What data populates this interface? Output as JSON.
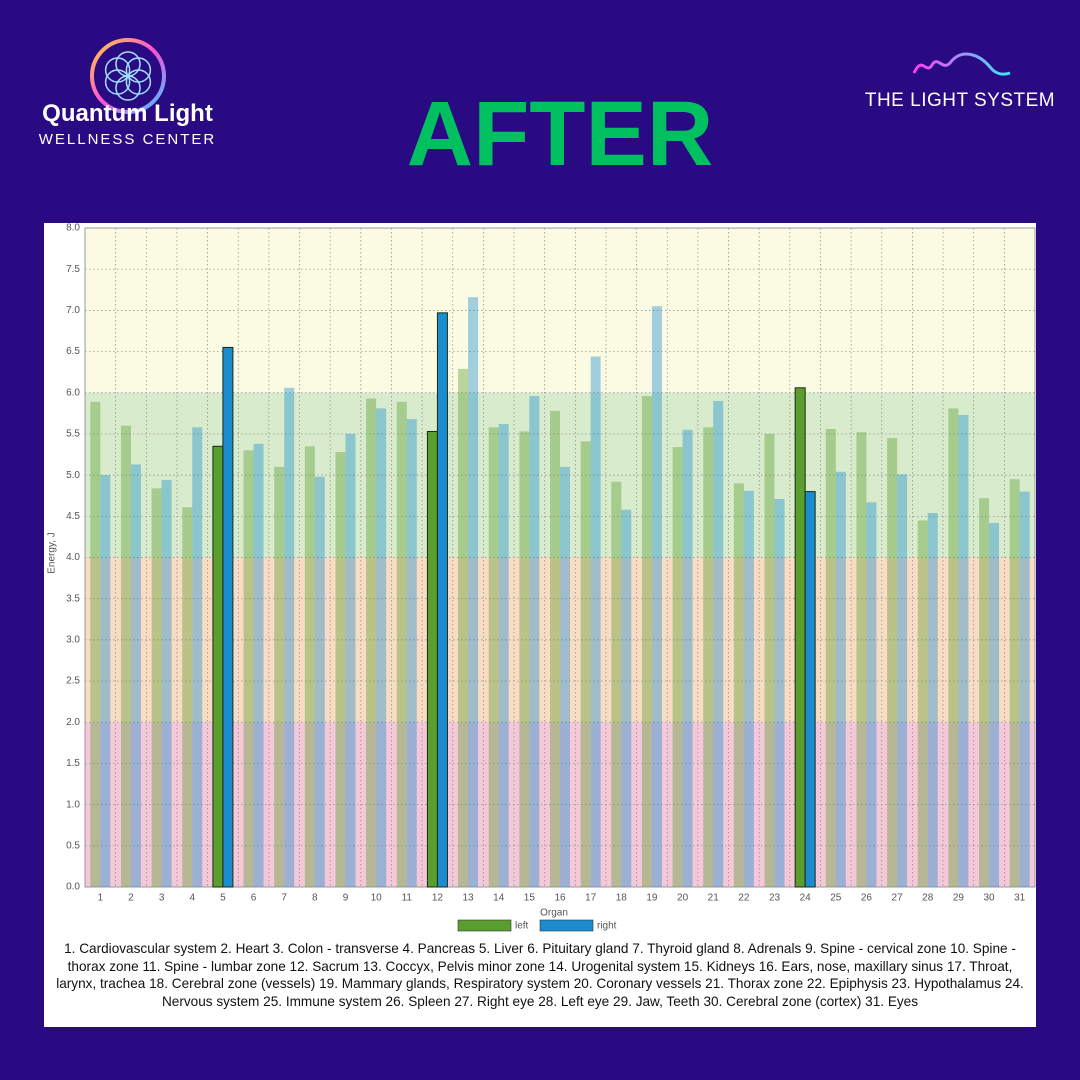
{
  "header": {
    "brand_name": "Quantum Light",
    "brand_sub": "WELLNESS CENTER",
    "title": "AFTER",
    "partner": "THE LIGHT SYSTEM"
  },
  "chart_data": {
    "type": "bar",
    "x_label": "Organ",
    "y_label": "Energy, J",
    "categories": [
      "1",
      "2",
      "3",
      "4",
      "5",
      "6",
      "7",
      "8",
      "9",
      "10",
      "11",
      "12",
      "13",
      "14",
      "15",
      "16",
      "17",
      "18",
      "19",
      "20",
      "21",
      "22",
      "23",
      "24",
      "25",
      "26",
      "27",
      "28",
      "29",
      "30",
      "31"
    ],
    "series": [
      {
        "name": "left",
        "color": "#5a9e2f",
        "values": [
          5.89,
          5.6,
          4.84,
          4.61,
          5.35,
          5.3,
          5.1,
          5.35,
          5.28,
          5.93,
          5.89,
          5.53,
          6.29,
          5.58,
          5.53,
          5.78,
          5.41,
          4.92,
          5.96,
          5.34,
          5.58,
          4.9,
          5.5,
          6.06,
          5.56,
          5.52,
          5.45,
          4.45,
          5.81,
          4.72,
          4.95
        ]
      },
      {
        "name": "right",
        "color": "#1a8ccf",
        "values": [
          5.0,
          5.13,
          4.94,
          5.58,
          6.55,
          5.38,
          6.06,
          4.98,
          5.5,
          5.81,
          5.68,
          6.97,
          7.16,
          5.62,
          5.96,
          5.1,
          6.44,
          4.58,
          7.05,
          5.55,
          5.9,
          4.81,
          4.71,
          4.8,
          5.04,
          4.67,
          5.01,
          4.54,
          5.73,
          4.42,
          4.8
        ]
      }
    ],
    "highlighted_categories": [
      "5",
      "12",
      "24"
    ],
    "ylim": [
      0,
      8
    ],
    "yticks": [
      {
        "value": 0,
        "label": "0.0"
      },
      0.5,
      {
        "value": 1,
        "label": "1.0"
      },
      1.5,
      {
        "value": 2,
        "label": "2.0"
      },
      2.5,
      {
        "value": 3,
        "label": "3.0"
      },
      3.5,
      {
        "value": 4,
        "label": "4.0"
      },
      4.5,
      {
        "value": 5,
        "label": "5.0"
      },
      5.5,
      {
        "value": 6,
        "label": "6.0"
      },
      6.5,
      {
        "value": 7,
        "label": "7.0"
      },
      7.5,
      {
        "value": 8,
        "label": "8.0"
      }
    ],
    "bands": [
      {
        "from": 0,
        "to": 2,
        "color": "#f4c8d8"
      },
      {
        "from": 2,
        "to": 4,
        "color": "#f8dcc4"
      },
      {
        "from": 4,
        "to": 6,
        "color": "#d8ebcc"
      },
      {
        "from": 6,
        "to": 8,
        "color": "#fbfbe4"
      }
    ],
    "grid": true,
    "legend": "bottom",
    "note": "1. Cardiovascular system  2. Heart  3. Colon - transverse  4. Pancreas  5. Liver  6. Pituitary gland  7. Thyroid gland  8. Adrenals  9. Spine - cervical zone  10. Spine - thorax zone  11. Spine - lumbar zone  12. Sacrum  13. Coccyx, Pelvis minor zone  14. Urogenital system  15. Kidneys  16. Ears, nose, maxillary sinus  17. Throat, larynx, trachea  18. Cerebral zone (vessels)  19. Mammary glands, Respiratory system  20. Coronary vessels  21. Thorax zone  22. Epiphysis  23. Hypothalamus  24. Nervous system  25. Immune system  26. Spleen  27. Right eye  28. Left eye  29. Jaw, Teeth  30. Cerebral zone (cortex)  31. Eyes"
  }
}
